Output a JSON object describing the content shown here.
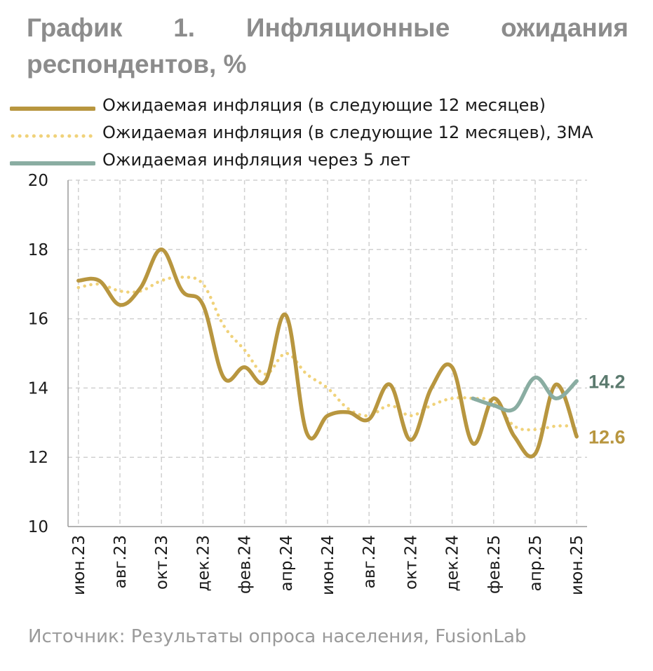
{
  "title": "График 1. Инфляционные ожидания респондентов, %",
  "source": "Источник: Результаты опроса населения, FusionLab",
  "colors": {
    "series_main": "#b8963f",
    "series_ma": "#f0d27a",
    "series_5y": "#8aada2",
    "label_main": "#b8963f",
    "label_5y": "#5b7a6e",
    "grid": "#d0d0d0",
    "axis": "#999999"
  },
  "legend": [
    {
      "label": "Ожидаемая инфляция (в следующие 12 месяцев)",
      "style": "solid",
      "color_key": "series_main"
    },
    {
      "label": "Ожидаемая инфляция (в следующие 12 месяцев), 3МА",
      "style": "dotted",
      "color_key": "series_ma"
    },
    {
      "label": "Ожидаемая инфляция через 5 лет",
      "style": "solid",
      "color_key": "series_5y"
    }
  ],
  "chart_data": {
    "type": "line",
    "x_tick_labels": [
      "июн.23",
      "авг.23",
      "окт.23",
      "дек.23",
      "фев.24",
      "апр.24",
      "июн.24",
      "авг.24",
      "окт.24",
      "дек.24",
      "фев.25",
      "апр.25",
      "июн.25"
    ],
    "x": [
      "июн.23",
      "июл.23",
      "авг.23",
      "сен.23",
      "окт.23",
      "ноя.23",
      "дек.23",
      "янв.24",
      "фев.24",
      "мар.24",
      "апр.24",
      "май.24",
      "июн.24",
      "июл.24",
      "авг.24",
      "сен.24",
      "окт.24",
      "ноя.24",
      "дек.24",
      "янв.25",
      "фев.25",
      "мар.25",
      "апр.25",
      "май.25",
      "июн.25"
    ],
    "y_ticks": [
      10,
      12,
      14,
      16,
      18,
      20
    ],
    "ylim": [
      10,
      20
    ],
    "grid": true,
    "series": [
      {
        "name": "Ожидаемая инфляция (в следующие 12 месяцев)",
        "values": [
          17.1,
          17.1,
          16.4,
          16.9,
          18.0,
          16.8,
          16.4,
          14.3,
          14.6,
          14.2,
          16.1,
          12.7,
          13.2,
          13.3,
          13.1,
          14.1,
          12.5,
          14.0,
          14.6,
          12.4,
          13.7,
          12.6,
          12.1,
          14.1,
          12.6
        ]
      },
      {
        "name": "Ожидаемая инфляция (в следующие 12 месяцев), 3МА",
        "values": [
          16.9,
          17.0,
          16.8,
          16.8,
          17.1,
          17.2,
          17.0,
          15.8,
          15.1,
          14.4,
          15.0,
          14.4,
          14.0,
          13.4,
          13.2,
          13.5,
          13.2,
          13.5,
          13.7,
          13.7,
          13.6,
          12.9,
          12.8,
          12.9,
          12.9
        ]
      },
      {
        "name": "Ожидаемая инфляция через 5 лет",
        "values": [
          null,
          null,
          null,
          null,
          null,
          null,
          null,
          null,
          null,
          null,
          null,
          null,
          null,
          null,
          null,
          null,
          null,
          null,
          null,
          13.7,
          13.5,
          13.4,
          14.3,
          13.7,
          14.2
        ]
      }
    ],
    "end_labels": [
      {
        "text": "14.2",
        "color_key": "label_5y",
        "value": 14.2
      },
      {
        "text": "12.6",
        "color_key": "label_main",
        "value": 12.6
      }
    ]
  }
}
